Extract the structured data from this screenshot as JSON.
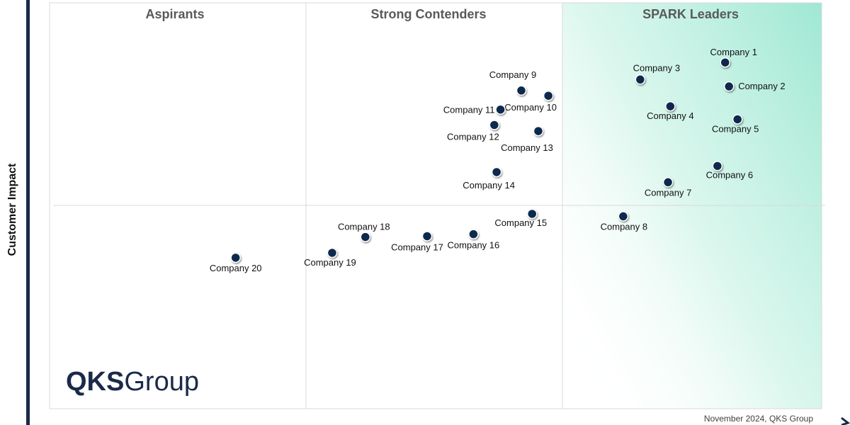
{
  "chart_data": {
    "type": "scatter",
    "ylabel": "Customer Impact",
    "xlim": [
      0,
      100
    ],
    "ylim": [
      0,
      100
    ],
    "quadrants": [
      "Aspirants",
      "Strong Contenders",
      "SPARK Leaders"
    ],
    "points": [
      {
        "label": "Company 1",
        "x": 87.5,
        "y": 85.3
      },
      {
        "label": "Company 2",
        "x": 88.0,
        "y": 79.4
      },
      {
        "label": "Company 3",
        "x": 76.5,
        "y": 81.1
      },
      {
        "label": "Company 4",
        "x": 80.4,
        "y": 74.5
      },
      {
        "label": "Company 5",
        "x": 89.1,
        "y": 71.3
      },
      {
        "label": "Company 6",
        "x": 86.5,
        "y": 59.8
      },
      {
        "label": "Company 7",
        "x": 80.1,
        "y": 55.8
      },
      {
        "label": "Company 8",
        "x": 74.3,
        "y": 47.4
      },
      {
        "label": "Company 9",
        "x": 61.1,
        "y": 78.4
      },
      {
        "label": "Company 10",
        "x": 64.6,
        "y": 77.1
      },
      {
        "label": "Company 11",
        "x": 58.4,
        "y": 73.7
      },
      {
        "label": "Company 12",
        "x": 57.6,
        "y": 69.9
      },
      {
        "label": "Company 13",
        "x": 63.3,
        "y": 68.4
      },
      {
        "label": "Company 14",
        "x": 57.9,
        "y": 58.3
      },
      {
        "label": "Company 15",
        "x": 62.5,
        "y": 48.0
      },
      {
        "label": "Company 16",
        "x": 54.9,
        "y": 43.0
      },
      {
        "label": "Company 17",
        "x": 48.9,
        "y": 42.5
      },
      {
        "label": "Company 18",
        "x": 40.9,
        "y": 42.3
      },
      {
        "label": "Company 19",
        "x": 36.6,
        "y": 38.4
      },
      {
        "label": "Company 20",
        "x": 24.1,
        "y": 37.2
      }
    ]
  },
  "branding": {
    "logo_bold": "QKS",
    "logo_rest": "Group",
    "footer": "November 2024, QKS Group"
  },
  "colors": {
    "point": "#0f2a4d",
    "leader_gradient": "#9fe8d3",
    "axis_bar": "#1b2a4a"
  }
}
